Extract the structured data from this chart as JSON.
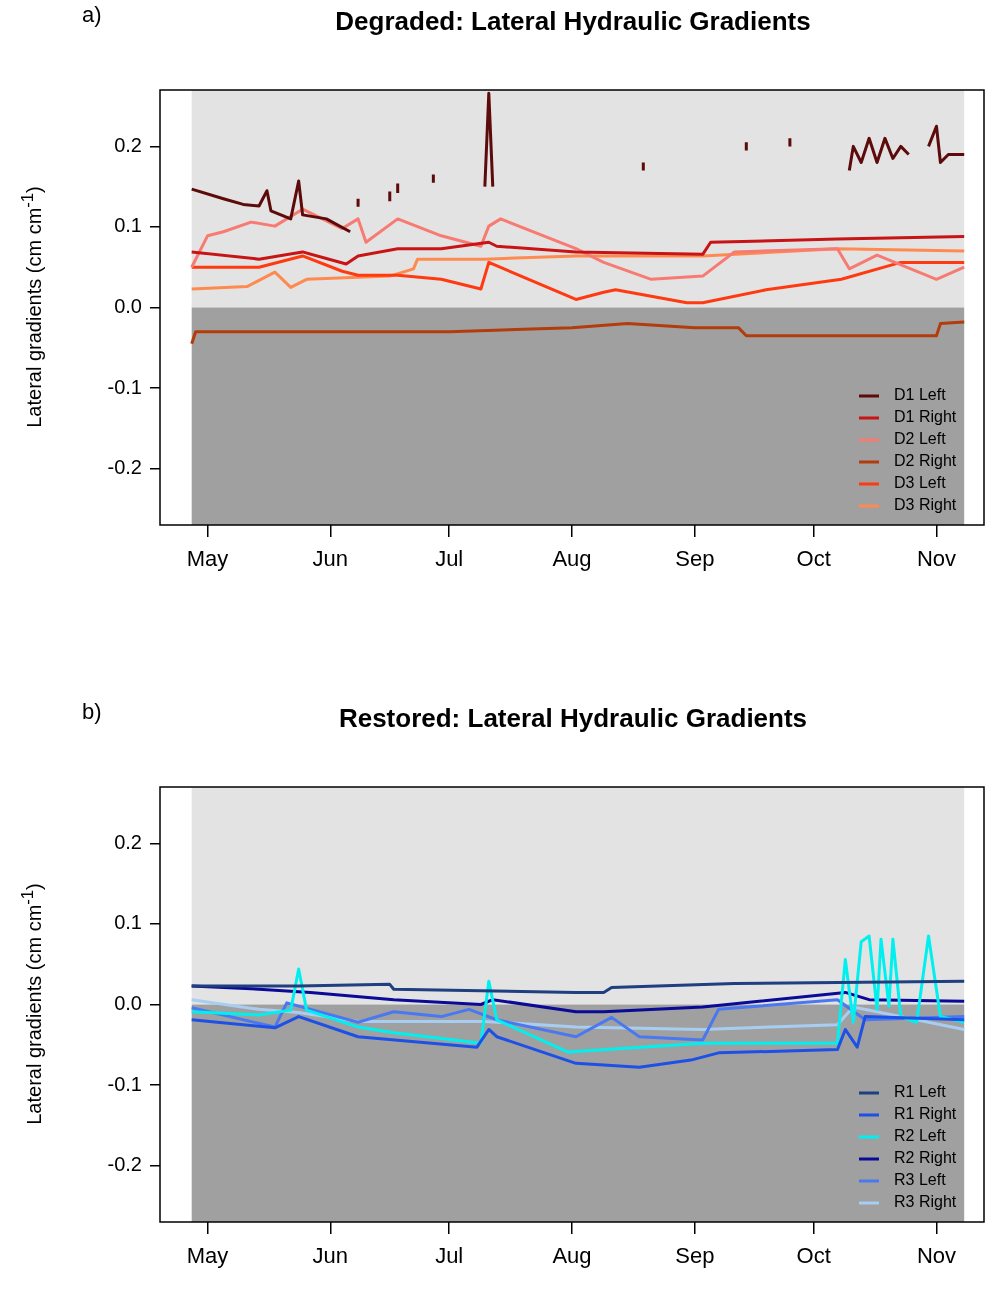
{
  "chart_data": [
    {
      "type": "line",
      "title": "Degraded: Lateral Hydraulic Gradients",
      "ylabel": "Lateral gradients (cm  cm$^{-1}$)",
      "annotations": [
        "a)"
      ],
      "xlim": [
        "--04-19",
        "--11-13"
      ],
      "xticks": [
        {
          "value": "--05-01",
          "label": "May"
        },
        {
          "value": "--06-01",
          "label": "Jun"
        },
        {
          "value": "--07-01",
          "label": "Jul"
        },
        {
          "value": "--08-01",
          "label": "Aug"
        },
        {
          "value": "--09-01",
          "label": "Sep"
        },
        {
          "value": "--10-01",
          "label": "Oct"
        },
        {
          "value": "--11-01",
          "label": "Nov"
        }
      ],
      "ylim": [
        -0.27,
        0.27
      ],
      "yticks": [
        -0.2,
        -0.1,
        {
          "value": 0,
          "label": "0.0"
        },
        0.1,
        0.2
      ],
      "bands": [
        {
          "axis": "y",
          "from": 0,
          "to": 0.27,
          "color": "#e3e3e3"
        },
        {
          "axis": "y",
          "from": -0.27,
          "to": 0,
          "color": "#a0a0a0"
        }
      ],
      "legend": "bottom right",
      "series": [
        {
          "name": "D1 Left",
          "color": "#5c0a0a",
          "x": [
            "--04-27",
            "--05-05",
            "--05-10",
            "--05-14",
            "--05-16",
            "--05-17",
            "--05-22",
            "--05-24",
            "--05-25",
            "--05-31",
            "--06-06",
            "--06-07",
            "--06-08",
            "--06-08",
            "--06-09",
            "--06-16",
            "--06-16",
            "--06-17",
            "--06-18",
            "--06-18",
            "--06-20",
            "--06-27",
            "--06-27",
            "--07-01",
            "--07-10",
            "--07-11",
            "--07-12",
            "--07-13",
            "--08-19",
            "--08-19",
            "--08-20",
            "--09-14",
            "--09-14",
            "--09-15",
            "--09-25",
            "--09-25",
            "--09-26",
            "--10-10",
            "--10-11",
            "--10-13",
            "--10-15",
            "--10-17",
            "--10-19",
            "--10-21",
            "--10-23",
            "--10-25",
            "--10-27",
            "--10-30",
            "--11-01",
            "--11-02",
            "--11-04",
            "--11-08"
          ],
          "values": [
            0.147,
            0.135,
            0.128,
            0.126,
            0.145,
            0.12,
            0.11,
            0.157,
            0.115,
            0.11,
            0.094,
            null,
            0.125,
            0.135,
            null,
            0.132,
            0.144,
            null,
            0.142,
            0.154,
            null,
            0.155,
            0.165,
            null,
            0.15,
            0.266,
            0.15,
            null,
            0.17,
            0.18,
            null,
            0.195,
            0.205,
            null,
            0.2,
            0.21,
            null,
            0.17,
            0.2,
            0.18,
            0.21,
            0.18,
            0.21,
            0.185,
            0.2,
            0.19,
            null,
            0.2,
            0.225,
            0.18,
            0.19,
            0.19
          ]
        },
        {
          "name": "D1 Right",
          "color": "#c81414",
          "x": [
            "--04-27",
            "--05-14",
            "--05-25",
            "--06-05",
            "--06-08",
            "--06-18",
            "--06-29",
            "--07-11",
            "--07-13",
            "--08-02",
            "--09-03",
            "--09-05",
            "--10-07",
            "--11-08"
          ],
          "values": [
            0.069,
            0.06,
            0.069,
            0.054,
            0.064,
            0.073,
            0.073,
            0.081,
            0.076,
            0.069,
            0.066,
            0.081,
            0.085,
            0.088
          ]
        },
        {
          "name": "D2 Left",
          "color": "#f77b72",
          "x": [
            "--04-27",
            "--05-01",
            "--05-05",
            "--05-12",
            "--05-18",
            "--05-25",
            "--06-04",
            "--06-08",
            "--06-10",
            "--06-18",
            "--06-29",
            "--07-09",
            "--07-11",
            "--07-14",
            "--08-02",
            "--08-09",
            "--08-21",
            "--09-03",
            "--09-11",
            "--10-07",
            "--10-10",
            "--10-17",
            "--11-01",
            "--11-08"
          ],
          "values": [
            0.05,
            0.089,
            0.094,
            0.106,
            0.101,
            0.122,
            0.098,
            0.11,
            0.081,
            0.11,
            0.089,
            0.076,
            0.101,
            0.11,
            0.073,
            0.056,
            0.035,
            0.039,
            0.069,
            0.073,
            0.048,
            0.065,
            0.035,
            0.05
          ]
        },
        {
          "name": "D2 Right",
          "color": "#b23c0c",
          "x": [
            "--04-27",
            "--04-28",
            "--06-01",
            "--07-01",
            "--08-01",
            "--08-15",
            "--09-01",
            "--09-12",
            "--09-14",
            "--10-01",
            "--11-01",
            "--11-02",
            "--11-08"
          ],
          "values": [
            -0.045,
            -0.03,
            -0.03,
            -0.03,
            -0.025,
            -0.02,
            -0.025,
            -0.025,
            -0.035,
            -0.035,
            -0.035,
            -0.02,
            -0.018
          ]
        },
        {
          "name": "D3 Left",
          "color": "#ff3a10",
          "x": [
            "--04-27",
            "--05-14",
            "--05-25",
            "--06-04",
            "--06-08",
            "--06-18",
            "--06-29",
            "--07-09",
            "--07-11",
            "--08-02",
            "--08-09",
            "--08-12",
            "--08-30",
            "--09-03",
            "--09-19",
            "--10-08",
            "--10-23",
            "--11-08"
          ],
          "values": [
            0.05,
            0.05,
            0.064,
            0.045,
            0.04,
            0.04,
            0.035,
            0.023,
            0.056,
            0.01,
            0.019,
            0.022,
            0.006,
            0.006,
            0.022,
            0.035,
            0.056,
            0.056
          ]
        },
        {
          "name": "D3 Right",
          "color": "#ff8a50",
          "x": [
            "--04-27",
            "--05-11",
            "--05-18",
            "--05-22",
            "--05-26",
            "--06-16",
            "--06-22",
            "--06-23",
            "--07-10",
            "--08-02",
            "--09-03",
            "--10-07",
            "--11-08"
          ],
          "values": [
            0.023,
            0.026,
            0.044,
            0.025,
            0.035,
            0.039,
            0.048,
            0.06,
            0.06,
            0.064,
            0.064,
            0.073,
            0.07
          ]
        }
      ]
    },
    {
      "type": "line",
      "title": "Restored: Lateral Hydraulic Gradients",
      "ylabel": "Lateral gradients (cm  cm$^{-1}$)",
      "annotations": [
        "b)"
      ],
      "xlim": [
        "--04-19",
        "--11-13"
      ],
      "xticks": [
        {
          "value": "--05-01",
          "label": "May"
        },
        {
          "value": "--06-01",
          "label": "Jun"
        },
        {
          "value": "--07-01",
          "label": "Jul"
        },
        {
          "value": "--08-01",
          "label": "Aug"
        },
        {
          "value": "--09-01",
          "label": "Sep"
        },
        {
          "value": "--10-01",
          "label": "Oct"
        },
        {
          "value": "--11-01",
          "label": "Nov"
        }
      ],
      "ylim": [
        -0.27,
        0.27
      ],
      "yticks": [
        -0.2,
        -0.1,
        {
          "value": 0,
          "label": "0.0"
        },
        0.1,
        0.2
      ],
      "bands": [
        {
          "axis": "y",
          "from": 0,
          "to": 0.27,
          "color": "#e3e3e3"
        },
        {
          "axis": "y",
          "from": -0.27,
          "to": 0,
          "color": "#a0a0a0"
        }
      ],
      "legend": "bottom right",
      "series": [
        {
          "name": "R1 Left",
          "color": "#1f3f80",
          "x": [
            "--04-27",
            "--05-24",
            "--06-16",
            "--06-17",
            "--08-02",
            "--08-09",
            "--08-11",
            "--09-11",
            "--11-08"
          ],
          "values": [
            0.023,
            0.023,
            0.025,
            0.019,
            0.015,
            0.015,
            0.021,
            0.026,
            0.029
          ]
        },
        {
          "name": "R1 Right",
          "color": "#1e50e6",
          "x": [
            "--04-27",
            "--05-18",
            "--05-24",
            "--06-08",
            "--07-08",
            "--07-11",
            "--07-13",
            "--08-02",
            "--08-18",
            "--08-31",
            "--09-07",
            "--10-07",
            "--10-09",
            "--10-12",
            "--10-14",
            "--11-08"
          ],
          "values": [
            -0.019,
            -0.029,
            -0.015,
            -0.04,
            -0.053,
            -0.031,
            -0.04,
            -0.073,
            -0.078,
            -0.069,
            -0.06,
            -0.056,
            -0.031,
            -0.053,
            -0.015,
            -0.019
          ]
        },
        {
          "name": "R2 Left",
          "color": "#00f0f0",
          "x": [
            "--04-27",
            "--05-14",
            "--05-22",
            "--05-24",
            "--05-26",
            "--06-08",
            "--06-17",
            "--07-09",
            "--07-11",
            "--07-13",
            "--07-31",
            "--09-03",
            "--10-07",
            "--10-09",
            "--10-11",
            "--10-13",
            "--10-15",
            "--10-17",
            "--10-18",
            "--10-20",
            "--10-21",
            "--10-23",
            "--10-27",
            "--10-30",
            "--11-02",
            "--11-08"
          ],
          "values": [
            -0.009,
            -0.013,
            -0.007,
            0.044,
            -0.007,
            -0.028,
            -0.035,
            -0.048,
            0.029,
            -0.019,
            -0.059,
            -0.048,
            -0.048,
            0.056,
            -0.022,
            0.078,
            0.085,
            -0.006,
            0.081,
            -0.002,
            0.081,
            -0.015,
            -0.022,
            0.085,
            -0.015,
            -0.022
          ]
        },
        {
          "name": "R2 Right",
          "color": "#0a0a96",
          "x": [
            "--04-27",
            "--05-14",
            "--05-27",
            "--06-17",
            "--07-09",
            "--07-12",
            "--08-02",
            "--08-09",
            "--09-03",
            "--10-09",
            "--10-15",
            "--11-08"
          ],
          "values": [
            0.023,
            0.019,
            0.015,
            0.006,
            0,
            0.006,
            -0.009,
            -0.009,
            -0.003,
            0.015,
            0.006,
            0.004
          ]
        },
        {
          "name": "R3 Left",
          "color": "#4a78f0",
          "x": [
            "--04-27",
            "--05-18",
            "--05-21",
            "--06-08",
            "--06-17",
            "--06-29",
            "--07-06",
            "--07-13",
            "--08-02",
            "--08-11",
            "--08-18",
            "--09-03",
            "--09-07",
            "--10-07",
            "--10-14",
            "--11-08"
          ],
          "values": [
            -0.004,
            -0.028,
            0.002,
            -0.022,
            -0.009,
            -0.015,
            -0.006,
            -0.019,
            -0.04,
            -0.016,
            -0.04,
            -0.044,
            -0.006,
            0.006,
            -0.019,
            -0.015
          ]
        },
        {
          "name": "R3 Right",
          "color": "#a8cdf2",
          "x": [
            "--04-27",
            "--05-14",
            "--05-24",
            "--06-08",
            "--07-10",
            "--08-02",
            "--09-03",
            "--10-07",
            "--10-11",
            "--11-08"
          ],
          "values": [
            0.006,
            -0.006,
            -0.01,
            -0.021,
            -0.021,
            -0.028,
            -0.031,
            -0.025,
            -0.003,
            -0.031
          ]
        }
      ]
    }
  ]
}
